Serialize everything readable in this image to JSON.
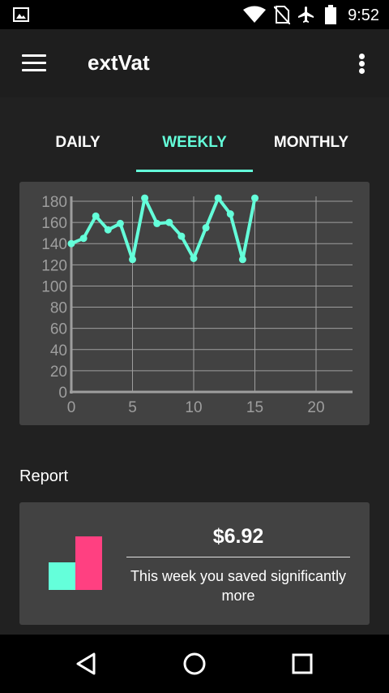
{
  "status_bar": {
    "time": "9:52",
    "icons": [
      "image-icon",
      "wifi-icon",
      "no-sim-icon",
      "airplane-icon",
      "battery-icon"
    ]
  },
  "app_bar": {
    "title": "extVat",
    "icons": [
      "menu-icon",
      "overflow-menu-icon"
    ]
  },
  "tabs": [
    {
      "label": "DAILY",
      "active": false
    },
    {
      "label": "WEEKLY",
      "active": true
    },
    {
      "label": "MONTHLY",
      "active": false
    }
  ],
  "colors": {
    "accent": "#64ffda",
    "pink": "#ff4081",
    "card": "#424242",
    "background": "#212121"
  },
  "chart_data": {
    "type": "line",
    "x": [
      0,
      1,
      2,
      3,
      4,
      5,
      6,
      7,
      8,
      9,
      10,
      11,
      12,
      13,
      14,
      15
    ],
    "series": [
      {
        "values": [
          140,
          145,
          166,
          153,
          159,
          125,
          183,
          159,
          160,
          147,
          126,
          155,
          183,
          168,
          125,
          183
        ]
      }
    ],
    "x_ticks": [
      "0",
      "5",
      "10",
      "15",
      "20"
    ],
    "y_ticks": [
      "0",
      "20",
      "40",
      "60",
      "80",
      "100",
      "120",
      "140",
      "160",
      "180"
    ],
    "xlim": [
      0,
      23
    ],
    "ylim": [
      0,
      180
    ],
    "grid": true,
    "line_color": "#64ffda"
  },
  "report": {
    "heading": "Report",
    "amount": "$6.92",
    "message": "This week you saved significantly more",
    "bars": [
      {
        "color": "#64ffda",
        "value": 0.52
      },
      {
        "color": "#ff4081",
        "value": 1.0
      }
    ]
  },
  "nav_bar": {
    "icons": [
      "back-icon",
      "home-icon",
      "recents-icon"
    ]
  }
}
